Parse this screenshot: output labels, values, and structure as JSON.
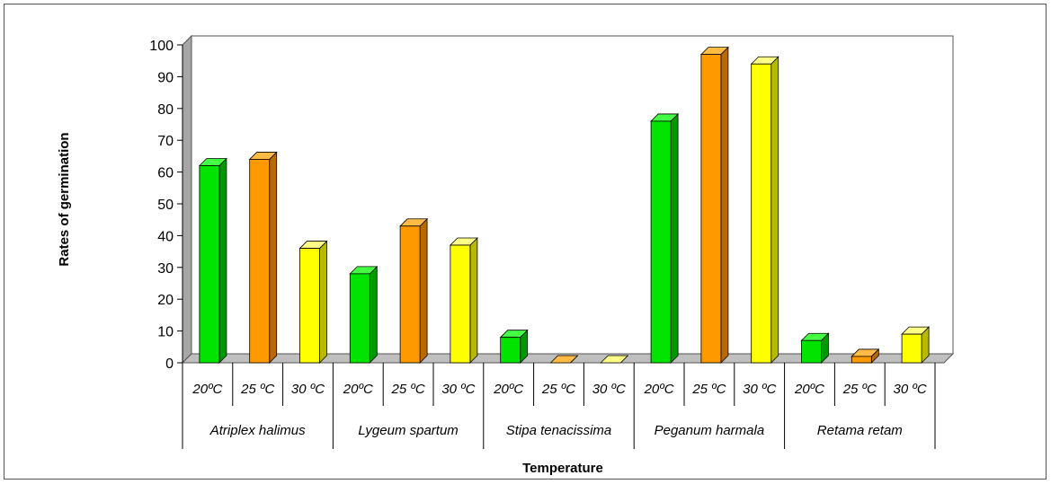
{
  "chart_data": {
    "type": "bar",
    "title": "",
    "xlabel": "Temperature",
    "ylabel": "Rates of germination",
    "ylim": [
      0,
      100
    ],
    "yticks": [
      0,
      10,
      20,
      30,
      40,
      50,
      60,
      70,
      80,
      90,
      100
    ],
    "groups": [
      {
        "name": "Atriplex halimus",
        "labels": [
          "20ºC",
          "25 ºC",
          "30 ºC"
        ],
        "values": [
          62,
          64,
          36
        ]
      },
      {
        "name": "Lygeum spartum",
        "labels": [
          "20ºC",
          "25 ºC",
          "30 ºC"
        ],
        "values": [
          28,
          43,
          37
        ]
      },
      {
        "name": "Stipa tenacissima",
        "labels": [
          "20ºC",
          "25 ºC",
          "30 ºC"
        ],
        "values": [
          8,
          0,
          0
        ]
      },
      {
        "name": "Peganum harmala",
        "labels": [
          "20ºC",
          "25 ºC",
          "30 ºC"
        ],
        "values": [
          76,
          97,
          94
        ]
      },
      {
        "name": "Retama retam",
        "labels": [
          "20ºC",
          "25 ºC",
          "30 ºC"
        ],
        "values": [
          7,
          2,
          9
        ]
      }
    ],
    "colors": {
      "temp_20": {
        "front": "#00e400",
        "side": "#009a00",
        "top": "#44ff44"
      },
      "temp_25": {
        "front": "#ff9900",
        "side": "#b86a00",
        "top": "#ffbb44"
      },
      "temp_30": {
        "front": "#ffff00",
        "side": "#b8b800",
        "top": "#ffff88"
      },
      "wall": "#a6a6a6",
      "floor": "#bfbfbf"
    }
  }
}
